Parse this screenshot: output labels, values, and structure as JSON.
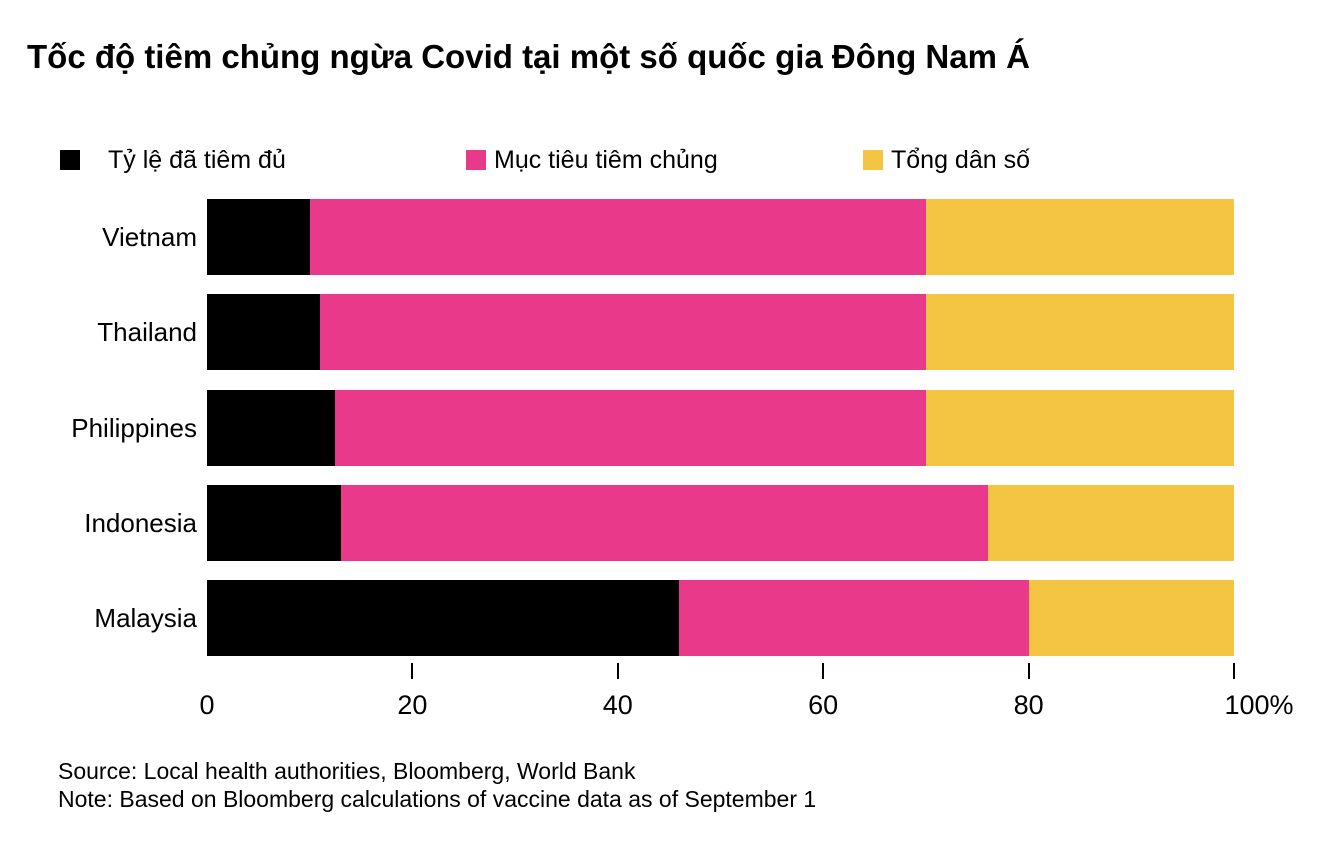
{
  "header": {
    "title": "Tốc độ tiêm chủng ngừa Covid tại một số quốc gia Đông Nam Á"
  },
  "legend": [
    {
      "label": "Tỷ lệ đã tiêm đủ",
      "color": "#000000"
    },
    {
      "label": "Mục tiêu tiêm chủng",
      "color": "#E9398B"
    },
    {
      "label": "Tổng dân số",
      "color": "#F4C443"
    }
  ],
  "chart_data": {
    "type": "bar",
    "orientation": "horizontal",
    "stacked": true,
    "title": "Tốc độ tiêm chủng ngừa Covid tại một số quốc gia Đông Nam Á",
    "categories": [
      "Vietnam",
      "Thailand",
      "Philippines",
      "Indonesia",
      "Malaysia"
    ],
    "values_are": "cumulative_right_edge_percent",
    "series": [
      {
        "name": "Tỷ lệ đã tiêm đủ",
        "color": "#000000",
        "values": [
          10,
          11,
          12.5,
          13,
          46
        ]
      },
      {
        "name": "Mục tiêu tiêm chủng",
        "color": "#E9398B",
        "values": [
          70,
          70,
          70,
          76,
          80
        ]
      },
      {
        "name": "Tổng dân số",
        "color": "#F4C443",
        "values": [
          100,
          100,
          100,
          100,
          100
        ]
      }
    ],
    "xlim": [
      0,
      100
    ],
    "xticks": [
      0,
      20,
      40,
      60,
      80,
      100
    ],
    "xtick_labels": [
      "0",
      "20",
      "40",
      "60",
      "80",
      "100%"
    ],
    "grid": false,
    "legend_position": "top"
  },
  "footer": {
    "source": "Source: Local health authorities, Bloomberg, World Bank",
    "note": "Note: Based on Bloomberg calculations of vaccine data as of September 1"
  }
}
